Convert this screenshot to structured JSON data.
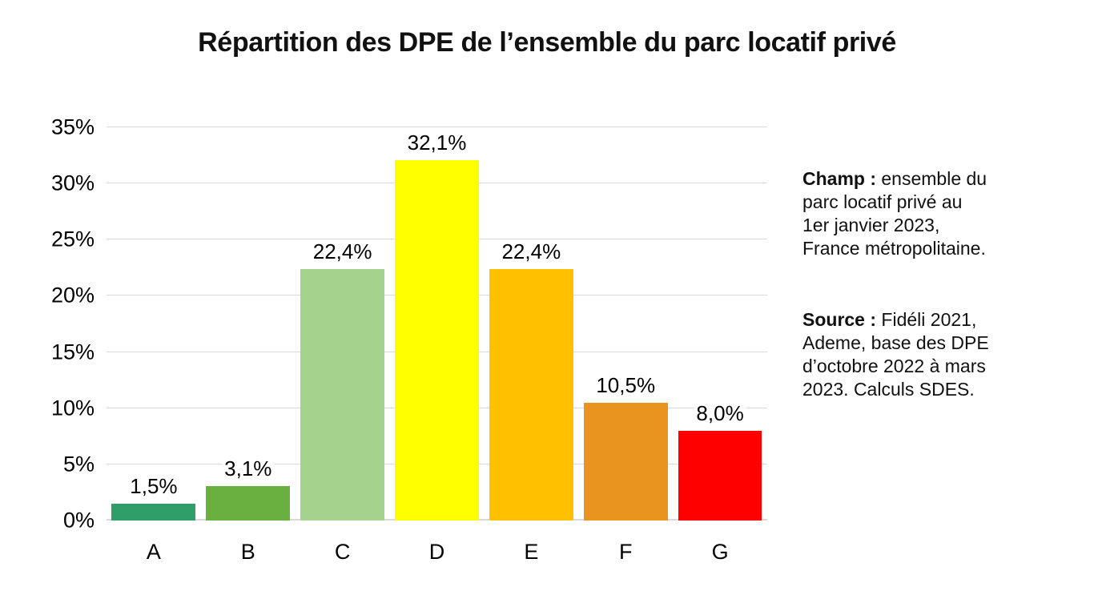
{
  "title": "Répartition des DPE de l’ensemble du parc locatif privé",
  "chart_data": {
    "type": "bar",
    "title": "Répartition des DPE de l’ensemble du parc locatif privé",
    "categories": [
      "A",
      "B",
      "C",
      "D",
      "E",
      "F",
      "G"
    ],
    "values": [
      1.5,
      3.1,
      22.4,
      32.1,
      22.4,
      10.5,
      8.0
    ],
    "value_labels": [
      "1,5%",
      "3,1%",
      "22,4%",
      "32,1%",
      "22,4%",
      "10,5%",
      "8,0%"
    ],
    "bar_colors": [
      "#2F9E68",
      "#6AB041",
      "#A5D28C",
      "#FFFF00",
      "#FFC000",
      "#E8941F",
      "#FF0000"
    ],
    "xlabel": "",
    "ylabel": "",
    "ylim": [
      0,
      35
    ],
    "yticks": [
      "0%",
      "5%",
      "10%",
      "15%",
      "20%",
      "25%",
      "30%",
      "35%"
    ],
    "grid": "horizontal",
    "legend": "none"
  },
  "notes": [
    {
      "label": "Champ :",
      "text": "ensemble du parc locatif privé au 1er janvier 2023, France métropolitaine.",
      "lines": [
        "ensemble du",
        "parc locatif privé au",
        "1er janvier 2023,",
        "France métropolitaine."
      ]
    },
    {
      "label": "Source :",
      "text": "Fidéli 2021, Ademe, base des DPE d’octobre 2022 à mars 2023. Calculs SDES.",
      "lines": [
        "Fidéli 2021,",
        "Ademe, base des DPE",
        "d’octobre 2022 à mars",
        "2023. Calculs SDES."
      ]
    }
  ],
  "colors": {
    "grid": "#D9D9D9",
    "text": "#000000",
    "title": "#111111",
    "background": "#FFFFFF"
  }
}
